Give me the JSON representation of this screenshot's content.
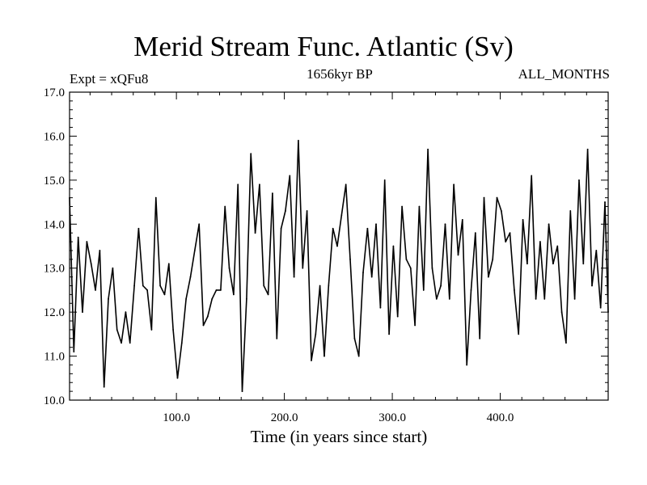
{
  "chart_data": {
    "type": "line",
    "title": "Merid Stream Func. Atlantic (Sv)",
    "experiment_label": "Expt = xQFu8",
    "period_label": "1656kyr BP",
    "months_label": "ALL_MONTHS",
    "xlabel": "Time (in years since start)",
    "ylabel": "",
    "xlim": [
      1,
      500
    ],
    "ylim": [
      10.0,
      17.0
    ],
    "x_ticks": [
      100,
      200,
      300,
      400
    ],
    "x_tick_labels": [
      "100.0",
      "200.0",
      "300.0",
      "400.0"
    ],
    "y_ticks": [
      10,
      11,
      12,
      13,
      14,
      15,
      16,
      17
    ],
    "y_tick_labels": [
      "10.0",
      "11.0",
      "12.0",
      "13.0",
      "14.0",
      "15.0",
      "16.0",
      "17.0"
    ],
    "series": [
      {
        "name": "Merid Stream Func. Atlantic",
        "color": "#000000",
        "x": [
          1,
          5,
          9,
          13,
          17,
          21,
          25,
          29,
          33,
          37,
          41,
          45,
          49,
          53,
          57,
          61,
          65,
          69,
          73,
          77,
          81,
          85,
          89,
          93,
          97,
          101,
          105,
          109,
          113,
          117,
          121,
          125,
          129,
          133,
          137,
          141,
          145,
          149,
          153,
          157,
          161,
          165,
          169,
          173,
          177,
          181,
          185,
          189,
          193,
          197,
          201,
          205,
          209,
          213,
          217,
          221,
          225,
          229,
          233,
          237,
          241,
          245,
          249,
          253,
          257,
          261,
          265,
          269,
          273,
          277,
          281,
          285,
          289,
          293,
          297,
          301,
          305,
          309,
          313,
          317,
          321,
          325,
          329,
          333,
          337,
          341,
          345,
          349,
          353,
          357,
          361,
          365,
          369,
          373,
          377,
          381,
          385,
          389,
          393,
          397,
          401,
          405,
          409,
          413,
          417,
          421,
          425,
          429,
          433,
          437,
          441,
          445,
          449,
          453,
          457,
          461,
          465,
          469,
          473,
          477,
          481,
          485,
          489,
          493,
          497,
          500
        ],
        "values": [
          14.6,
          11.1,
          13.7,
          12.0,
          13.6,
          13.1,
          12.5,
          13.4,
          10.3,
          12.3,
          13.0,
          11.6,
          11.3,
          12.0,
          11.3,
          12.6,
          13.9,
          12.6,
          12.5,
          11.6,
          14.6,
          12.6,
          12.4,
          13.1,
          11.6,
          10.5,
          11.3,
          12.3,
          12.8,
          13.4,
          14.0,
          11.7,
          11.9,
          12.3,
          12.5,
          12.5,
          14.4,
          13.0,
          12.4,
          14.9,
          10.2,
          12.3,
          15.6,
          13.8,
          14.9,
          12.6,
          12.4,
          14.7,
          11.4,
          13.9,
          14.3,
          15.1,
          12.8,
          15.9,
          13.0,
          14.3,
          10.9,
          11.5,
          12.6,
          11.0,
          12.6,
          13.9,
          13.5,
          14.2,
          14.9,
          13.2,
          11.4,
          11.0,
          12.9,
          13.9,
          12.8,
          14.0,
          12.1,
          15.0,
          11.5,
          13.5,
          11.9,
          14.4,
          13.2,
          13.0,
          11.7,
          14.4,
          12.5,
          15.7,
          13.0,
          12.3,
          12.6,
          14.0,
          12.3,
          14.9,
          13.3,
          14.1,
          10.8,
          12.5,
          13.8,
          11.4,
          14.6,
          12.8,
          13.2,
          14.6,
          14.3,
          13.6,
          13.8,
          12.5,
          11.5,
          14.1,
          13.1,
          15.1,
          12.3,
          13.6,
          12.3,
          14.0,
          13.1,
          13.5,
          12.0,
          11.3,
          14.3,
          12.3,
          15.0,
          13.1,
          15.7,
          12.6,
          13.4,
          12.1,
          14.5,
          12.0
        ]
      }
    ]
  }
}
